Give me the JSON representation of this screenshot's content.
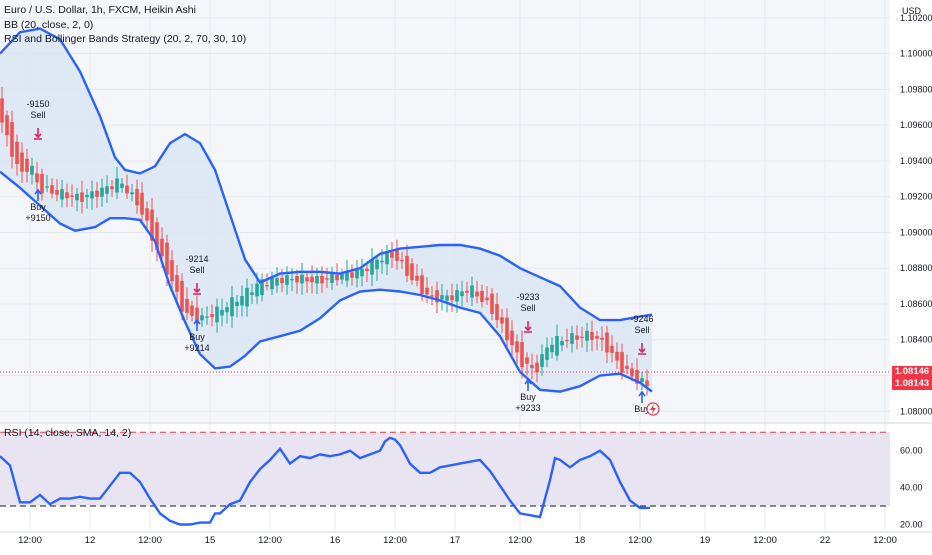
{
  "legend": {
    "title": "Euro / U.S. Dollar, 1h, FXCM, Heikin Ashi",
    "bb": "BB (20, close, 2, 0)",
    "strategy": "RSI and Bollinger Bands Strategy (20, 2, 70, 30, 10)",
    "rsi": "RSI (14, close, SMA, 14, 2)"
  },
  "price_axis": {
    "currency": "USD",
    "ticks": [
      "1.10200",
      "1.10000",
      "1.09800",
      "1.09600",
      "1.09400",
      "1.09200",
      "1.09000",
      "1.08800",
      "1.08600",
      "1.08400",
      "1.08200",
      "1.08000"
    ],
    "last_price_1": "1.08146",
    "last_price_2": "1.08143"
  },
  "rsi_axis": {
    "ticks": [
      "60.00",
      "40.00",
      "20.00"
    ]
  },
  "time_axis": {
    "ticks": [
      "12:00",
      "12",
      "12:00",
      "15",
      "12:00",
      "16",
      "12:00",
      "17",
      "12:00",
      "18",
      "12:00",
      "19",
      "12:00",
      "22",
      "12:00"
    ]
  },
  "signals": [
    {
      "type": "sell",
      "line1": "-9150",
      "line2": "Sell"
    },
    {
      "type": "buy",
      "line1": "Buy",
      "line2": "+9150"
    },
    {
      "type": "sell",
      "line1": "-9214",
      "line2": "Sell"
    },
    {
      "type": "buy",
      "line1": "Buy",
      "line2": "+9214"
    },
    {
      "type": "sell",
      "line1": "-9233",
      "line2": "Sell"
    },
    {
      "type": "buy",
      "line1": "Buy",
      "line2": "+9233"
    },
    {
      "type": "sell",
      "line1": "-9246",
      "line2": "Sell"
    },
    {
      "type": "buy",
      "line1": "Buy",
      "line2": ""
    }
  ],
  "colors": {
    "up": "#26a69a",
    "down": "#ef5350",
    "band": "#2962ff",
    "band_fill": "#dbe5f5",
    "rsi_fill": "#e8e4f1",
    "sell_marker": "#e91e63",
    "buy_marker": "#2962ff",
    "rsi_upper": "#f23645",
    "rsi_lower": "#131722"
  },
  "chart_data": {
    "type": "candlestick",
    "symbol": "EURUSD",
    "price_ylim": [
      1.0794,
      1.103
    ],
    "rsi_ylim": [
      17,
      75
    ],
    "rsi_levels": [
      70,
      30
    ],
    "upper_band": [
      [
        0,
        1.1
      ],
      [
        20,
        1.1012
      ],
      [
        40,
        1.1014
      ],
      [
        60,
        1.1008
      ],
      [
        80,
        1.099
      ],
      [
        100,
        1.0965
      ],
      [
        115,
        1.0942
      ],
      [
        125,
        1.0935
      ],
      [
        140,
        1.0933
      ],
      [
        155,
        1.0937
      ],
      [
        170,
        1.095
      ],
      [
        185,
        1.0955
      ],
      [
        200,
        1.095
      ],
      [
        215,
        1.0935
      ],
      [
        230,
        1.091
      ],
      [
        245,
        1.0885
      ],
      [
        260,
        1.0872
      ],
      [
        280,
        1.0877
      ],
      [
        300,
        1.0878
      ],
      [
        320,
        1.0878
      ],
      [
        340,
        1.0877
      ],
      [
        360,
        1.088
      ],
      [
        380,
        1.0888
      ],
      [
        400,
        1.0891
      ],
      [
        420,
        1.0892
      ],
      [
        440,
        1.0893
      ],
      [
        460,
        1.0893
      ],
      [
        480,
        1.0891
      ],
      [
        500,
        1.0887
      ],
      [
        520,
        1.088
      ],
      [
        540,
        1.0875
      ],
      [
        560,
        1.087
      ],
      [
        580,
        1.0858
      ],
      [
        600,
        1.0851
      ],
      [
        620,
        1.0851
      ],
      [
        640,
        1.0853
      ],
      [
        652,
        1.0854
      ]
    ],
    "lower_band": [
      [
        0,
        1.0934
      ],
      [
        20,
        1.0925
      ],
      [
        40,
        1.0915
      ],
      [
        60,
        1.0905
      ],
      [
        75,
        1.0901
      ],
      [
        95,
        1.0903
      ],
      [
        110,
        1.0908
      ],
      [
        125,
        1.0908
      ],
      [
        140,
        1.0907
      ],
      [
        155,
        1.0895
      ],
      [
        170,
        1.087
      ],
      [
        185,
        1.085
      ],
      [
        200,
        1.0832
      ],
      [
        215,
        1.0824
      ],
      [
        230,
        1.0825
      ],
      [
        245,
        1.0831
      ],
      [
        260,
        1.0839
      ],
      [
        280,
        1.0842
      ],
      [
        300,
        1.0845
      ],
      [
        320,
        1.0852
      ],
      [
        340,
        1.0862
      ],
      [
        360,
        1.0867
      ],
      [
        380,
        1.0868
      ],
      [
        400,
        1.0867
      ],
      [
        420,
        1.0865
      ],
      [
        440,
        1.0862
      ],
      [
        460,
        1.0858
      ],
      [
        480,
        1.0855
      ],
      [
        500,
        1.0842
      ],
      [
        520,
        1.0822
      ],
      [
        540,
        1.0812
      ],
      [
        560,
        1.0811
      ],
      [
        580,
        1.0814
      ],
      [
        600,
        1.082
      ],
      [
        620,
        1.0821
      ],
      [
        640,
        1.0816
      ],
      [
        652,
        1.0811
      ]
    ],
    "candles_sample": [
      [
        0,
        1.0979,
        1.0964
      ],
      [
        10,
        1.0962,
        1.0948
      ],
      [
        20,
        1.0948,
        1.0932
      ],
      [
        30,
        1.0935,
        1.0938
      ],
      [
        40,
        1.0932,
        1.0924
      ],
      [
        60,
        1.0921,
        1.0922
      ],
      [
        80,
        1.092,
        1.0919
      ],
      [
        100,
        1.0921,
        1.0923
      ],
      [
        120,
        1.0925,
        1.0929
      ],
      [
        140,
        1.0923,
        1.0914
      ],
      [
        155,
        1.0908,
        1.0893
      ],
      [
        170,
        1.0888,
        1.0875
      ],
      [
        185,
        1.0866,
        1.0854
      ],
      [
        200,
        1.0853,
        1.0851
      ],
      [
        220,
        1.0852,
        1.0857
      ],
      [
        240,
        1.0858,
        1.0864
      ],
      [
        260,
        1.0866,
        1.0872
      ],
      [
        280,
        1.0872,
        1.0874
      ],
      [
        300,
        1.0874,
        1.0874
      ],
      [
        320,
        1.0874,
        1.0873
      ],
      [
        340,
        1.0874,
        1.0876
      ],
      [
        360,
        1.0876,
        1.0878
      ],
      [
        380,
        1.088,
        1.0886
      ],
      [
        395,
        1.089,
        1.0887
      ],
      [
        410,
        1.0884,
        1.0875
      ],
      [
        430,
        1.0867,
        1.0863
      ],
      [
        450,
        1.0862,
        1.0864
      ],
      [
        470,
        1.0866,
        1.0869
      ],
      [
        490,
        1.0866,
        1.0858
      ],
      [
        505,
        1.0852,
        1.0844
      ],
      [
        520,
        1.0838,
        1.0828
      ],
      [
        535,
        1.0824,
        1.0822
      ],
      [
        550,
        1.083,
        1.0839
      ],
      [
        570,
        1.084,
        1.0841
      ],
      [
        590,
        1.0842,
        1.0843
      ],
      [
        605,
        1.0843,
        1.0837
      ],
      [
        620,
        1.0832,
        1.0825
      ],
      [
        635,
        1.0822,
        1.0818
      ],
      [
        650,
        1.0815,
        1.0814
      ]
    ],
    "rsi": [
      [
        0,
        57
      ],
      [
        10,
        52
      ],
      [
        20,
        32
      ],
      [
        30,
        32
      ],
      [
        40,
        36
      ],
      [
        50,
        31
      ],
      [
        60,
        34
      ],
      [
        70,
        34
      ],
      [
        80,
        35
      ],
      [
        90,
        34
      ],
      [
        100,
        34
      ],
      [
        110,
        41
      ],
      [
        120,
        48
      ],
      [
        130,
        48
      ],
      [
        140,
        43
      ],
      [
        150,
        34
      ],
      [
        160,
        26
      ],
      [
        170,
        22
      ],
      [
        180,
        20
      ],
      [
        190,
        20
      ],
      [
        200,
        21
      ],
      [
        210,
        21
      ],
      [
        215,
        26
      ],
      [
        220,
        26
      ],
      [
        230,
        31
      ],
      [
        240,
        33
      ],
      [
        250,
        43
      ],
      [
        260,
        50
      ],
      [
        270,
        55
      ],
      [
        280,
        61
      ],
      [
        290,
        53
      ],
      [
        300,
        57
      ],
      [
        310,
        56
      ],
      [
        320,
        58
      ],
      [
        330,
        57
      ],
      [
        340,
        58
      ],
      [
        350,
        60
      ],
      [
        360,
        56
      ],
      [
        370,
        58
      ],
      [
        380,
        60
      ],
      [
        385,
        65
      ],
      [
        390,
        67
      ],
      [
        395,
        66
      ],
      [
        400,
        63
      ],
      [
        410,
        53
      ],
      [
        420,
        48
      ],
      [
        430,
        48
      ],
      [
        440,
        51
      ],
      [
        450,
        52
      ],
      [
        460,
        53
      ],
      [
        470,
        54
      ],
      [
        480,
        55
      ],
      [
        490,
        49
      ],
      [
        500,
        41
      ],
      [
        510,
        33
      ],
      [
        520,
        26
      ],
      [
        530,
        25
      ],
      [
        540,
        24
      ],
      [
        550,
        44
      ],
      [
        555,
        56
      ],
      [
        560,
        55
      ],
      [
        570,
        51
      ],
      [
        580,
        55
      ],
      [
        590,
        57
      ],
      [
        600,
        60
      ],
      [
        610,
        55
      ],
      [
        620,
        43
      ],
      [
        630,
        33
      ],
      [
        640,
        29
      ],
      [
        650,
        29
      ]
    ]
  }
}
